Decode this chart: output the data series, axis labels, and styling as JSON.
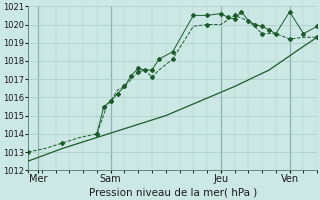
{
  "xlabel": "Pression niveau de la mer( hPa )",
  "bg_color": "#cce8e4",
  "grid_color": "#aaccca",
  "line_color": "#1a5c2a",
  "vline_color": "#4a7a70",
  "xlim": [
    0,
    84
  ],
  "ylim": [
    1012,
    1021
  ],
  "yticks": [
    1012,
    1013,
    1014,
    1015,
    1016,
    1017,
    1018,
    1019,
    1020,
    1021
  ],
  "xtick_positions": [
    3,
    24,
    56,
    76
  ],
  "xtick_labels": [
    "Mer",
    "Sam",
    "Jeu",
    "Ven"
  ],
  "vline_positions": [
    3,
    24,
    56,
    76
  ],
  "series1": {
    "x": [
      0,
      10,
      20,
      30,
      40,
      50,
      60,
      70,
      80,
      84
    ],
    "y": [
      1012.5,
      1013.2,
      1013.8,
      1014.4,
      1015.0,
      1015.8,
      1016.6,
      1017.5,
      1018.8,
      1019.3
    ]
  },
  "series2": {
    "x": [
      0,
      5,
      10,
      15,
      20,
      23,
      24,
      26,
      28,
      30,
      32,
      34,
      36,
      38,
      42,
      48,
      52,
      56,
      60,
      64,
      68,
      72,
      76,
      80,
      84
    ],
    "y": [
      1013.0,
      1013.2,
      1013.5,
      1013.8,
      1014.0,
      1015.6,
      1015.8,
      1016.4,
      1016.6,
      1017.0,
      1017.4,
      1017.5,
      1017.1,
      1017.5,
      1018.1,
      1019.9,
      1020.0,
      1020.0,
      1020.5,
      1020.2,
      1019.5,
      1019.5,
      1019.2,
      1019.3,
      1019.3
    ]
  },
  "series3": {
    "x": [
      20,
      22,
      24,
      26,
      28,
      30,
      32,
      34,
      36,
      38,
      42,
      48,
      52,
      56,
      58,
      60,
      62,
      64,
      66,
      68,
      70,
      72,
      76,
      80,
      84
    ],
    "y": [
      1014.0,
      1015.5,
      1015.8,
      1016.2,
      1016.6,
      1017.2,
      1017.6,
      1017.5,
      1017.5,
      1018.1,
      1018.5,
      1020.5,
      1020.5,
      1020.6,
      1020.4,
      1020.3,
      1020.7,
      1020.2,
      1020.0,
      1019.9,
      1019.7,
      1019.5,
      1020.7,
      1019.5,
      1019.9
    ]
  }
}
